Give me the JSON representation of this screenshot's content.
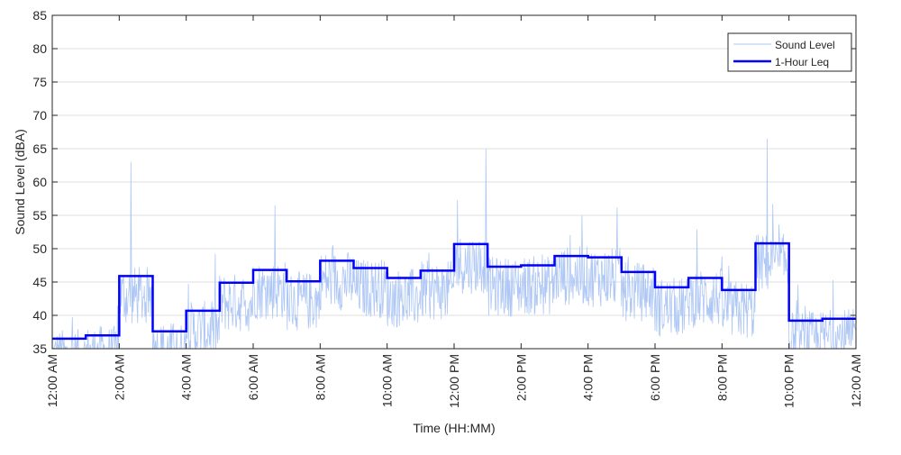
{
  "chart_data": {
    "type": "line",
    "title": "",
    "xlabel": "Time (HH:MM)",
    "ylabel": "Sound Level (dBA)",
    "ylim": [
      35,
      85
    ],
    "xlim_hours": [
      0,
      24
    ],
    "yticks": [
      35,
      40,
      45,
      50,
      55,
      60,
      65,
      70,
      75,
      80,
      85
    ],
    "xtick_hours": [
      0,
      2,
      4,
      6,
      8,
      10,
      12,
      14,
      16,
      18,
      20,
      22,
      24
    ],
    "xtick_labels": [
      "12:00 AM",
      "2:00 AM",
      "4:00 AM",
      "6:00 AM",
      "8:00 AM",
      "10:00 AM",
      "12:00 PM",
      "2:00 PM",
      "4:00 PM",
      "6:00 PM",
      "8:00 PM",
      "10:00 PM",
      "12:00 AM"
    ],
    "grid": "horizontal",
    "legend_position": "top-right",
    "series": [
      {
        "name": "Sound Level",
        "color": "#aec7f5",
        "style": "thin noisy line",
        "peaks": [
          {
            "hour": 2.35,
            "value": 63.0
          },
          {
            "hour": 12.95,
            "value": 65.0
          },
          {
            "hour": 21.35,
            "value": 66.5
          },
          {
            "hour": 6.65,
            "value": 56.5
          },
          {
            "hour": 12.1,
            "value": 57.3
          }
        ]
      },
      {
        "name": "1-Hour Leq",
        "color": "#0000ff",
        "style": "step",
        "hours": [
          0,
          1,
          2,
          3,
          4,
          5,
          6,
          7,
          8,
          9,
          10,
          11,
          12,
          13,
          14,
          15,
          16,
          17,
          18,
          19,
          20,
          21,
          22,
          23
        ],
        "values": [
          36.5,
          37.0,
          45.9,
          37.6,
          40.7,
          44.9,
          46.8,
          45.1,
          48.2,
          47.1,
          45.6,
          46.7,
          50.7,
          47.3,
          47.5,
          48.9,
          48.7,
          46.5,
          44.2,
          45.6,
          43.8,
          50.8,
          39.2,
          39.5
        ]
      }
    ]
  }
}
